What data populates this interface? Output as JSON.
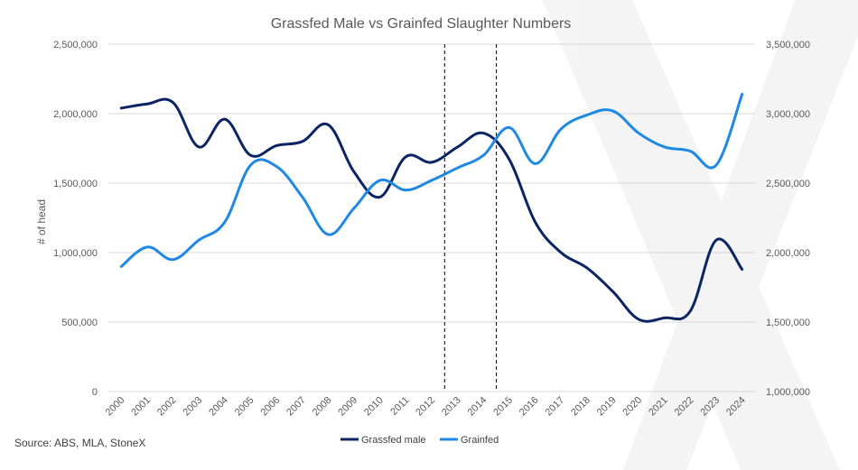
{
  "chart_data": {
    "type": "line",
    "title": "Grassfed Male vs Grainfed Slaughter Numbers",
    "ylabel": "# of head",
    "y2label": "",
    "source": "Source: ABS, MLA, StoneX",
    "categories": [
      "2000",
      "2001",
      "2002",
      "2003",
      "2004",
      "2005",
      "2006",
      "2007",
      "2008",
      "2009",
      "2010",
      "2011",
      "2012",
      "2013",
      "2014",
      "2015",
      "2016",
      "2017",
      "2018",
      "2019",
      "2020",
      "2021",
      "2022",
      "2023",
      "2024"
    ],
    "y_ticks": [
      "0",
      "500,000",
      "1,000,000",
      "1,500,000",
      "2,000,000",
      "2,500,000"
    ],
    "y2_ticks": [
      "1,000,000",
      "1,500,000",
      "2,000,000",
      "2,500,000",
      "3,000,000",
      "3,500,000"
    ],
    "ylim": [
      0,
      2500000
    ],
    "y2lim": [
      1000000,
      3500000
    ],
    "grid": true,
    "legend_position": "bottom",
    "vertical_markers": [
      "2012.5",
      "2014.5"
    ],
    "series": [
      {
        "name": "Grassfed male",
        "axis": "left",
        "color": "#0b2463",
        "values": [
          2040000,
          2070000,
          2080000,
          1760000,
          1960000,
          1700000,
          1770000,
          1800000,
          1920000,
          1580000,
          1400000,
          1690000,
          1650000,
          1760000,
          1860000,
          1670000,
          1220000,
          1000000,
          890000,
          720000,
          520000,
          530000,
          580000,
          1090000,
          880000
        ]
      },
      {
        "name": "Grainfed",
        "axis": "right",
        "color": "#1f88e5",
        "values": [
          1900000,
          2040000,
          1950000,
          2090000,
          2220000,
          2630000,
          2620000,
          2400000,
          2130000,
          2320000,
          2520000,
          2450000,
          2520000,
          2610000,
          2700000,
          2900000,
          2640000,
          2890000,
          2990000,
          3020000,
          2860000,
          2760000,
          2730000,
          2630000,
          3140000
        ]
      }
    ]
  }
}
